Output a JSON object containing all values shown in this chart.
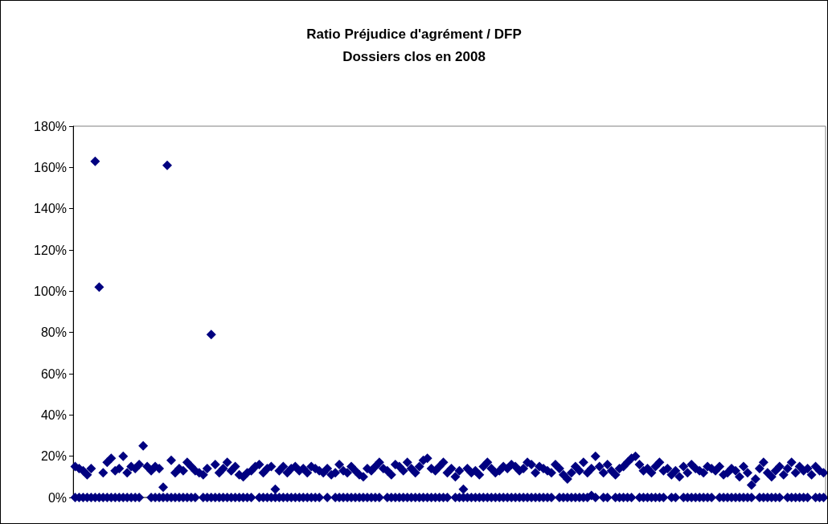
{
  "chart_data": {
    "type": "scatter",
    "title": "Ratio Préjudice d'agrément / DFP",
    "subtitle": "Dossiers clos en 2008",
    "categories": [
      null,
      null,
      null,
      null,
      null,
      null,
      null,
      null,
      null,
      null,
      null,
      null,
      null,
      null,
      null,
      null,
      null,
      null,
      null,
      null,
      null,
      null,
      null,
      null,
      null,
      null,
      null,
      null,
      null,
      null,
      null,
      null,
      null,
      null,
      null,
      null,
      null,
      null,
      null,
      null,
      null,
      null,
      null,
      null,
      null,
      null,
      null,
      null,
      null,
      null,
      null,
      null,
      null,
      null,
      null,
      null,
      null,
      null,
      null,
      null,
      null,
      null,
      null,
      null,
      null,
      null,
      null,
      null,
      null,
      null,
      null,
      null,
      null,
      null,
      null,
      null,
      null,
      null,
      null,
      null,
      null,
      null,
      null,
      null,
      null,
      null,
      null,
      null,
      null,
      null,
      null,
      null,
      null,
      null,
      null,
      null,
      null,
      null,
      null,
      null,
      null,
      null,
      null,
      null,
      null,
      null,
      null,
      null,
      null,
      null,
      null,
      null,
      null,
      null,
      null,
      null,
      null,
      null,
      null,
      null,
      null,
      null,
      null,
      null,
      null,
      null,
      null,
      null,
      null,
      null,
      null,
      null,
      null,
      null,
      null,
      null,
      null,
      null,
      null,
      null,
      null,
      null,
      null,
      null,
      null,
      null,
      null,
      null,
      null,
      null,
      null,
      null,
      null,
      null,
      null,
      null,
      null,
      null,
      null,
      null,
      null,
      null,
      null,
      null,
      null,
      null,
      null,
      null,
      null,
      null,
      null,
      null,
      null,
      null,
      null,
      null,
      null,
      null,
      null,
      null,
      null,
      null,
      null,
      null,
      null,
      null,
      null,
      null
    ],
    "series": [
      {
        "color": "#000080",
        "values": [
          15,
          14,
          13,
          11,
          14,
          163,
          102,
          12,
          17,
          19,
          13,
          14,
          20,
          12,
          15,
          14,
          16,
          25,
          15,
          13,
          15,
          14,
          5,
          161,
          18,
          12,
          14,
          13,
          17,
          15,
          13,
          12,
          11,
          14,
          79,
          16,
          12,
          14,
          17,
          13,
          15,
          11,
          10,
          12,
          13,
          15,
          16,
          12,
          14,
          15,
          4,
          13,
          15,
          12,
          14,
          15,
          13,
          14,
          12,
          15,
          14,
          13,
          12,
          14,
          11,
          12,
          16,
          13,
          12,
          15,
          13,
          11,
          10,
          14,
          13,
          15,
          17,
          14,
          13,
          11,
          16,
          15,
          13,
          17,
          14,
          12,
          15,
          18,
          19,
          14,
          13,
          15,
          17,
          12,
          14,
          10,
          13,
          4,
          14,
          12,
          13,
          11,
          15,
          17,
          14,
          12,
          13,
          15,
          14,
          16,
          15,
          13,
          14,
          17,
          16,
          12,
          15,
          14,
          13,
          12,
          16,
          14,
          11,
          9,
          12,
          15,
          13,
          17,
          12,
          14,
          20,
          15,
          12,
          16,
          13,
          11,
          14,
          15,
          17,
          19,
          20,
          16,
          13,
          14,
          12,
          15,
          17,
          13,
          14,
          11,
          13,
          10,
          15,
          12,
          16,
          14,
          13,
          12,
          15,
          14,
          13,
          15,
          11,
          12,
          14,
          13,
          10,
          15,
          12,
          6,
          9,
          14,
          17,
          12,
          10,
          13,
          15,
          11,
          14,
          17,
          12,
          15,
          13,
          14,
          11,
          15,
          13,
          12
        ]
      },
      {
        "color": "#000080",
        "values": [
          0,
          0,
          0,
          0,
          0,
          0,
          0,
          0,
          0,
          0,
          0,
          0,
          0,
          0,
          0,
          0,
          0,
          null,
          null,
          0,
          0,
          0,
          0,
          0,
          0,
          0,
          0,
          0,
          0,
          0,
          0,
          null,
          0,
          0,
          0,
          0,
          0,
          0,
          0,
          0,
          0,
          0,
          0,
          0,
          0,
          null,
          0,
          0,
          0,
          0,
          0,
          0,
          0,
          0,
          0,
          0,
          0,
          0,
          0,
          0,
          0,
          0,
          null,
          0,
          null,
          0,
          0,
          0,
          0,
          0,
          0,
          0,
          0,
          0,
          0,
          0,
          0,
          null,
          0,
          0,
          0,
          0,
          0,
          0,
          0,
          0,
          0,
          0,
          0,
          0,
          0,
          0,
          0,
          0,
          null,
          0,
          0,
          0,
          0,
          0,
          0,
          0,
          0,
          0,
          0,
          0,
          0,
          0,
          0,
          0,
          0,
          0,
          0,
          0,
          0,
          0,
          0,
          0,
          0,
          0,
          null,
          0,
          0,
          0,
          0,
          0,
          0,
          0,
          0,
          1,
          0,
          null,
          0,
          0,
          null,
          0,
          0,
          0,
          0,
          0,
          null,
          0,
          0,
          0,
          0,
          0,
          0,
          0,
          null,
          0,
          0,
          null,
          0,
          0,
          0,
          0,
          0,
          0,
          0,
          0,
          null,
          0,
          0,
          0,
          0,
          0,
          0,
          0,
          0,
          0,
          null,
          0,
          0,
          0,
          0,
          0,
          0,
          null,
          0,
          0,
          0,
          0,
          0,
          0,
          null,
          0,
          0,
          0
        ]
      }
    ],
    "ylim": [
      0,
      180
    ],
    "yticks": [
      {
        "value": 0,
        "label": "0%"
      },
      {
        "value": 20,
        "label": "20%"
      },
      {
        "value": 40,
        "label": "40%"
      },
      {
        "value": 60,
        "label": "60%"
      },
      {
        "value": 80,
        "label": "80%"
      },
      {
        "value": 100,
        "label": "100%"
      },
      {
        "value": 120,
        "label": "120%"
      },
      {
        "value": 140,
        "label": "140%"
      },
      {
        "value": 160,
        "label": "160%"
      },
      {
        "value": 180,
        "label": "180%"
      }
    ],
    "tick_labels": "y",
    "marker": "diamond"
  }
}
